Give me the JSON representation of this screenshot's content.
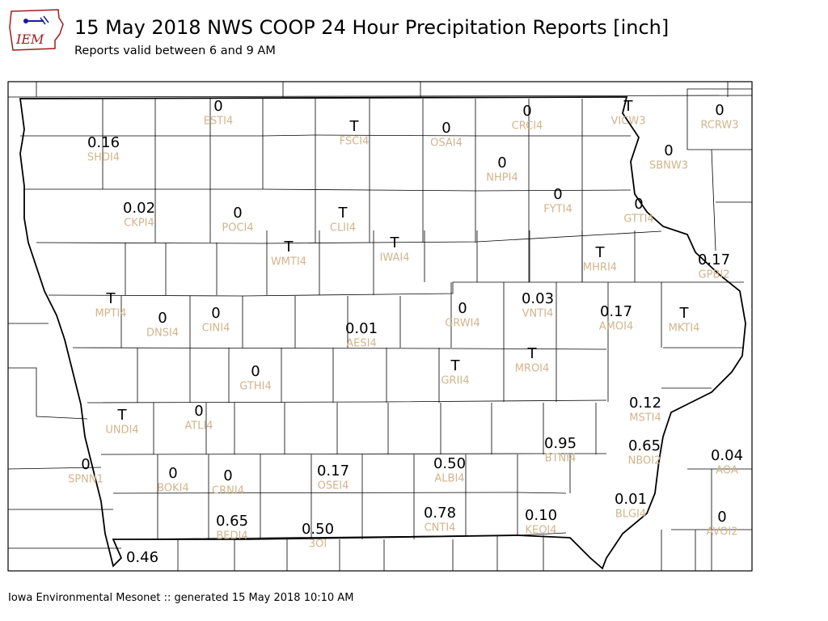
{
  "logo": {
    "text": "IEM"
  },
  "header": {
    "title": "15 May 2018 NWS COOP 24 Hour Precipitation Reports [inch]",
    "subtitle": "Reports valid between 6 and 9 AM"
  },
  "footer": {
    "text": "Iowa Environmental Mesonet :: generated 15 May 2018 10:10 AM"
  },
  "colors": {
    "value": "#000000",
    "station_id": "#d2b48c",
    "border": "#000000"
  },
  "stations": [
    {
      "id": "ESTI4",
      "value": "0"
    },
    {
      "id": "FSCI4",
      "value": "T"
    },
    {
      "id": "OSAI4",
      "value": "0"
    },
    {
      "id": "CRCI4",
      "value": "0"
    },
    {
      "id": "VICW3",
      "value": "T"
    },
    {
      "id": "RCRW3",
      "value": "0"
    },
    {
      "id": "SHDI4",
      "value": "0.16"
    },
    {
      "id": "NHPI4",
      "value": "0"
    },
    {
      "id": "SBNW3",
      "value": "0"
    },
    {
      "id": "CKPI4",
      "value": "0.02"
    },
    {
      "id": "POCI4",
      "value": "0"
    },
    {
      "id": "CLII4",
      "value": "T"
    },
    {
      "id": "FYTI4",
      "value": "0"
    },
    {
      "id": "GTTI4",
      "value": "0"
    },
    {
      "id": "WMTI4",
      "value": "T"
    },
    {
      "id": "IWAI4",
      "value": "T"
    },
    {
      "id": "MHRI4",
      "value": "T"
    },
    {
      "id": "GPBI2",
      "value": "0.17"
    },
    {
      "id": "MPTI4",
      "value": "T"
    },
    {
      "id": "DNSI4",
      "value": "0"
    },
    {
      "id": "CINI4",
      "value": "0"
    },
    {
      "id": "GRWI4",
      "value": "0"
    },
    {
      "id": "VNTI4",
      "value": "0.03"
    },
    {
      "id": "AMOI4",
      "value": "0.17"
    },
    {
      "id": "MKTI4",
      "value": "T"
    },
    {
      "id": "AESI4",
      "value": "0.01"
    },
    {
      "id": "GRII4",
      "value": "T"
    },
    {
      "id": "MROI4",
      "value": "T"
    },
    {
      "id": "GTHI4",
      "value": "0"
    },
    {
      "id": "UNDI4",
      "value": "T"
    },
    {
      "id": "ATLI4",
      "value": "0"
    },
    {
      "id": "MSTI4",
      "value": "0.12"
    },
    {
      "id": "BTNI4",
      "value": "0.95"
    },
    {
      "id": "NBOI2",
      "value": "0.65"
    },
    {
      "id": "SPNN1",
      "value": "0"
    },
    {
      "id": "BOKI4",
      "value": "0"
    },
    {
      "id": "CRNI4",
      "value": "0"
    },
    {
      "id": "OSEI4",
      "value": "0.17"
    },
    {
      "id": "ALBI4",
      "value": "0.50"
    },
    {
      "id": "AOA",
      "value": "0.04"
    },
    {
      "id": "BLGI4",
      "value": "0.01"
    },
    {
      "id": "CNTI4",
      "value": "0.78"
    },
    {
      "id": "KEOI4",
      "value": "0.10"
    },
    {
      "id": "AVOI2",
      "value": "0"
    },
    {
      "id": "BEDI4",
      "value": "0.65"
    },
    {
      "id": "3OI",
      "value": "0.50"
    },
    {
      "id": "",
      "value": "0.46"
    }
  ]
}
